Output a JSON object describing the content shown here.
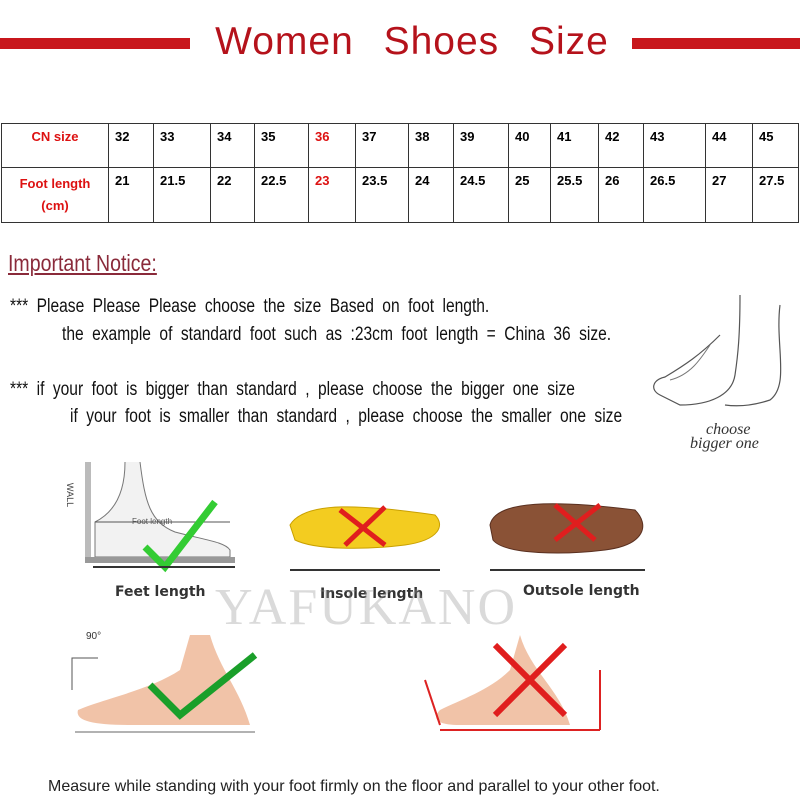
{
  "title": "Women Shoes Size",
  "table": {
    "row_labels": [
      "CN size",
      "Foot length (cm)"
    ],
    "cn_size": [
      "32",
      "33",
      "34",
      "35",
      "36",
      "37",
      "38",
      "39",
      "40",
      "41",
      "42",
      "43",
      "44",
      "45"
    ],
    "foot_length": [
      "21",
      "21.5",
      "22",
      "22.5",
      "23",
      "23.5",
      "24",
      "24.5",
      "25",
      "25.5",
      "26",
      "26.5",
      "27",
      "27.5"
    ],
    "highlight_color": "#dd1111"
  },
  "notice": {
    "title": "Important Notice:",
    "line1": "*** Please Please Please choose the size Based on foot length.",
    "line2": "the example of standard foot such as :23cm foot length = China 36 size.",
    "line3": "***  if your foot is bigger than standard , please choose the bigger one size",
    "line4": "if your foot is smaller than standard , please choose the smaller one size",
    "foot_caption_1": "choose",
    "foot_caption_2": "bigger one"
  },
  "illustrations": {
    "wall_label": "WALL",
    "foot_length_label": "Foot length",
    "feet_length": "Feet length",
    "insole_length": "Insole length",
    "outsole_length": "Outsole length",
    "angle_label": "90°",
    "watermark": "YAFUKANO"
  },
  "footer": "Measure while standing with your foot firmly on the floor and parallel to your other foot."
}
